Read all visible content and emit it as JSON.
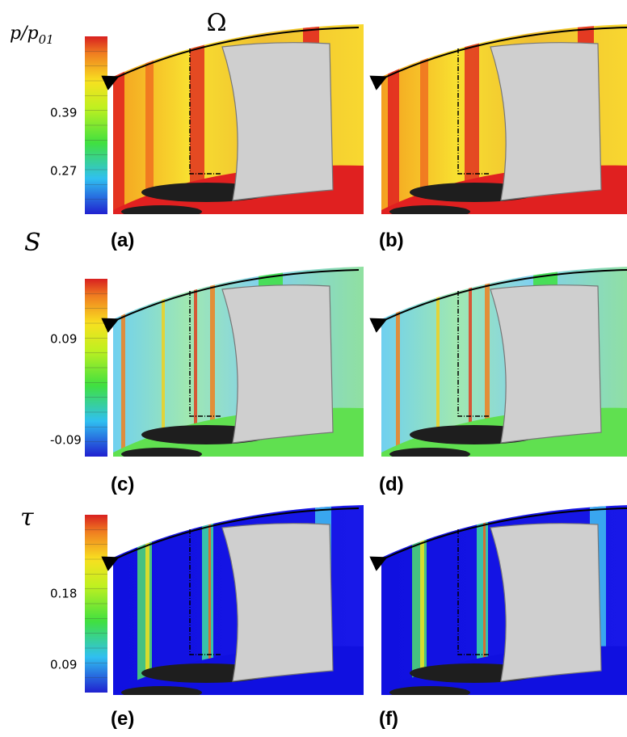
{
  "rotation_label": "Ω",
  "rows": [
    {
      "variable": {
        "text": "p/p",
        "subscript": "01"
      },
      "colorbar_ticks": [
        0.39,
        0.27
      ],
      "panels": [
        "(a)",
        "(b)"
      ]
    },
    {
      "variable": {
        "text": "S"
      },
      "colorbar_ticks": [
        0.09,
        -0.09
      ],
      "panels": [
        "(c)",
        "(d)"
      ]
    },
    {
      "variable": {
        "text": "τ"
      },
      "colorbar_ticks": [
        0.18,
        0.09
      ],
      "panels": [
        "(e)",
        "(f)"
      ]
    }
  ]
}
